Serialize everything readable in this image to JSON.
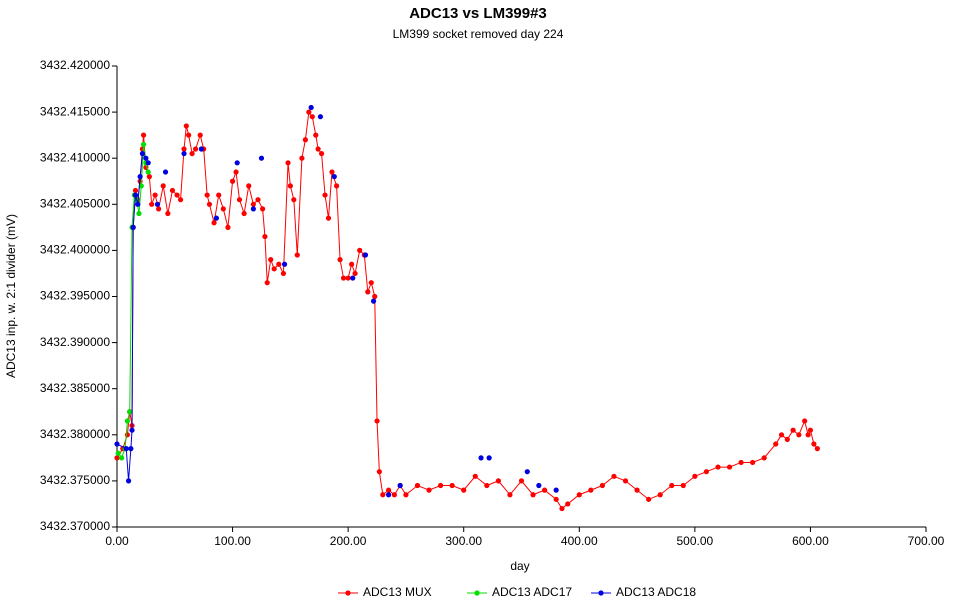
{
  "chart_data": {
    "type": "line",
    "title": "ADC13 vs LM399#3",
    "subtitle": "LM399 socket removed day 224",
    "x_label": "day",
    "y_label": "ADC13 inp. w. 2:1 divider (mV)",
    "xlim": [
      0,
      700
    ],
    "xticks": [
      {
        "value": 0,
        "label": "0.00"
      },
      {
        "value": 100,
        "label": "100.00"
      },
      {
        "value": 200,
        "label": "200.00"
      },
      {
        "value": 300,
        "label": "300.00"
      },
      {
        "value": 400,
        "label": "400.00"
      },
      {
        "value": 500,
        "label": "500.00"
      },
      {
        "value": 600,
        "label": "600.00"
      },
      {
        "value": 700,
        "label": "700.00"
      }
    ],
    "ylim": [
      3432.37,
      3432.42
    ],
    "yticks": [
      {
        "value": 3432.37,
        "label": "3432.370000"
      },
      {
        "value": 3432.375,
        "label": "3432.375000"
      },
      {
        "value": 3432.38,
        "label": "3432.380000"
      },
      {
        "value": 3432.385,
        "label": "3432.385000"
      },
      {
        "value": 3432.39,
        "label": "3432.390000"
      },
      {
        "value": 3432.395,
        "label": "3432.395000"
      },
      {
        "value": 3432.4,
        "label": "3432.400000"
      },
      {
        "value": 3432.405,
        "label": "3432.405000"
      },
      {
        "value": 3432.41,
        "label": "3432.410000"
      },
      {
        "value": 3432.415,
        "label": "3432.415000"
      },
      {
        "value": 3432.42,
        "label": "3432.420000"
      }
    ],
    "grid": false,
    "legend": "bottom",
    "series": [
      {
        "name": "ADC13 MUX",
        "color": "#ff0000",
        "x": [
          0,
          5,
          9,
          11,
          13,
          14,
          16,
          18,
          20,
          22,
          23,
          25,
          28,
          30,
          33,
          36,
          40,
          44,
          48,
          52,
          55,
          58,
          60,
          62,
          65,
          68,
          72,
          75,
          78,
          80,
          84,
          88,
          92,
          96,
          100,
          103,
          106,
          110,
          114,
          118,
          122,
          126,
          128,
          130,
          133,
          136,
          140,
          144,
          148,
          150,
          153,
          156,
          160,
          163,
          166,
          169,
          172,
          174,
          177,
          180,
          183,
          186,
          190,
          193,
          196,
          200,
          203,
          206,
          210,
          214,
          217,
          220,
          223,
          225,
          227,
          230,
          235,
          240,
          245,
          250,
          260,
          270,
          280,
          290,
          300,
          310,
          320,
          330,
          340,
          350,
          360,
          370,
          380,
          385,
          390,
          400,
          410,
          420,
          430,
          440,
          450,
          460,
          470,
          480,
          490,
          500,
          510,
          520,
          530,
          540,
          550,
          560,
          570,
          575,
          580,
          585,
          590,
          595,
          598,
          600,
          603,
          606
        ],
        "values": [
          3432.3775,
          3432.3785,
          3432.38,
          3432.3825,
          3432.381,
          3432.4025,
          3432.4065,
          3432.4055,
          3432.4075,
          3432.411,
          3432.4125,
          3432.409,
          3432.408,
          3432.405,
          3432.406,
          3432.4045,
          3432.407,
          3432.404,
          3432.4065,
          3432.406,
          3432.4055,
          3432.411,
          3432.4135,
          3432.4125,
          3432.4105,
          3432.411,
          3432.4125,
          3432.411,
          3432.406,
          3432.405,
          3432.403,
          3432.406,
          3432.4045,
          3432.4025,
          3432.4075,
          3432.4085,
          3432.4055,
          3432.404,
          3432.407,
          3432.405,
          3432.4055,
          3432.4045,
          3432.4015,
          3432.3965,
          3432.399,
          3432.398,
          3432.3985,
          3432.3975,
          3432.4095,
          3432.407,
          3432.4055,
          3432.3995,
          3432.41,
          3432.412,
          3432.415,
          3432.4145,
          3432.4125,
          3432.411,
          3432.4105,
          3432.406,
          3432.4035,
          3432.4085,
          3432.407,
          3432.399,
          3432.397,
          3432.397,
          3432.3985,
          3432.3975,
          3432.4,
          3432.3995,
          3432.3955,
          3432.3965,
          3432.395,
          3432.3815,
          3432.376,
          3432.3735,
          3432.374,
          3432.3735,
          3432.3745,
          3432.3735,
          3432.3745,
          3432.374,
          3432.3745,
          3432.3745,
          3432.374,
          3432.3755,
          3432.3745,
          3432.375,
          3432.3735,
          3432.375,
          3432.3735,
          3432.374,
          3432.373,
          3432.372,
          3432.3725,
          3432.3735,
          3432.374,
          3432.3745,
          3432.3755,
          3432.375,
          3432.374,
          3432.373,
          3432.3735,
          3432.3745,
          3432.3745,
          3432.3755,
          3432.376,
          3432.3765,
          3432.3765,
          3432.377,
          3432.377,
          3432.3775,
          3432.379,
          3432.38,
          3432.3795,
          3432.3805,
          3432.38,
          3432.3815,
          3432.38,
          3432.3805,
          3432.379,
          3432.3785
        ]
      },
      {
        "name": "ADC13 ADC17",
        "color": "#00e000",
        "x": [
          1,
          4,
          7,
          9,
          11,
          13,
          15,
          17,
          19,
          21,
          23,
          25,
          27
        ],
        "values": [
          3432.378,
          3432.3775,
          3432.3785,
          3432.3815,
          3432.3825,
          3432.4025,
          3432.406,
          3432.4055,
          3432.404,
          3432.407,
          3432.4115,
          3432.4095,
          3432.4085
        ]
      },
      {
        "name": "ADC13 ADC18",
        "color": "#0000e0",
        "x": [
          0,
          8,
          10,
          12,
          13,
          14,
          16,
          18,
          20,
          22,
          25,
          27,
          null,
          35,
          null,
          42,
          null,
          58,
          null,
          73,
          null,
          86,
          null,
          104,
          null,
          118,
          null,
          125,
          null,
          145,
          null,
          168,
          null,
          176,
          null,
          188,
          null,
          204,
          null,
          215,
          null,
          222,
          null,
          235,
          null,
          245,
          null,
          315,
          null,
          322,
          null,
          355,
          null,
          365,
          null,
          380
        ],
        "values": [
          3432.379,
          3432.3785,
          3432.375,
          3432.3785,
          3432.3805,
          3432.4025,
          3432.406,
          3432.405,
          3432.408,
          3432.4105,
          3432.41,
          3432.4095,
          null,
          3432.405,
          null,
          3432.4085,
          null,
          3432.4105,
          null,
          3432.411,
          null,
          3432.4035,
          null,
          3432.4095,
          null,
          3432.4045,
          null,
          3432.41,
          null,
          3432.3985,
          null,
          3432.4155,
          null,
          3432.4145,
          null,
          3432.408,
          null,
          3432.397,
          null,
          3432.3995,
          null,
          3432.3945,
          null,
          3432.3735,
          null,
          3432.3745,
          null,
          3432.3775,
          null,
          3432.3775,
          null,
          3432.376,
          null,
          3432.3745,
          null,
          3432.374
        ]
      }
    ]
  }
}
